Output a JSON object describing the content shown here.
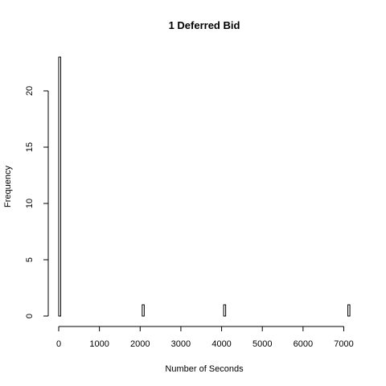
{
  "chart_data": {
    "type": "bar",
    "title": "1 Deferred Bid",
    "xlabel": "Number of Seconds",
    "ylabel": "Frequency",
    "xlim": [
      0,
      7200
    ],
    "ylim": [
      0,
      23
    ],
    "bin_width": 50,
    "bins": [
      {
        "start": 0,
        "end": 50,
        "count": 23
      },
      {
        "start": 2050,
        "end": 2100,
        "count": 1
      },
      {
        "start": 4050,
        "end": 4100,
        "count": 1
      },
      {
        "start": 7100,
        "end": 7150,
        "count": 1
      }
    ],
    "x_ticks": [
      0,
      1000,
      2000,
      3000,
      4000,
      5000,
      6000,
      7000
    ],
    "y_ticks": [
      0,
      5,
      10,
      15,
      20
    ],
    "x_tick_labels": [
      "0",
      "1000",
      "2000",
      "3000",
      "4000",
      "5000",
      "6000",
      "7000"
    ],
    "y_tick_labels": [
      "0",
      "5",
      "10",
      "15",
      "20"
    ]
  }
}
